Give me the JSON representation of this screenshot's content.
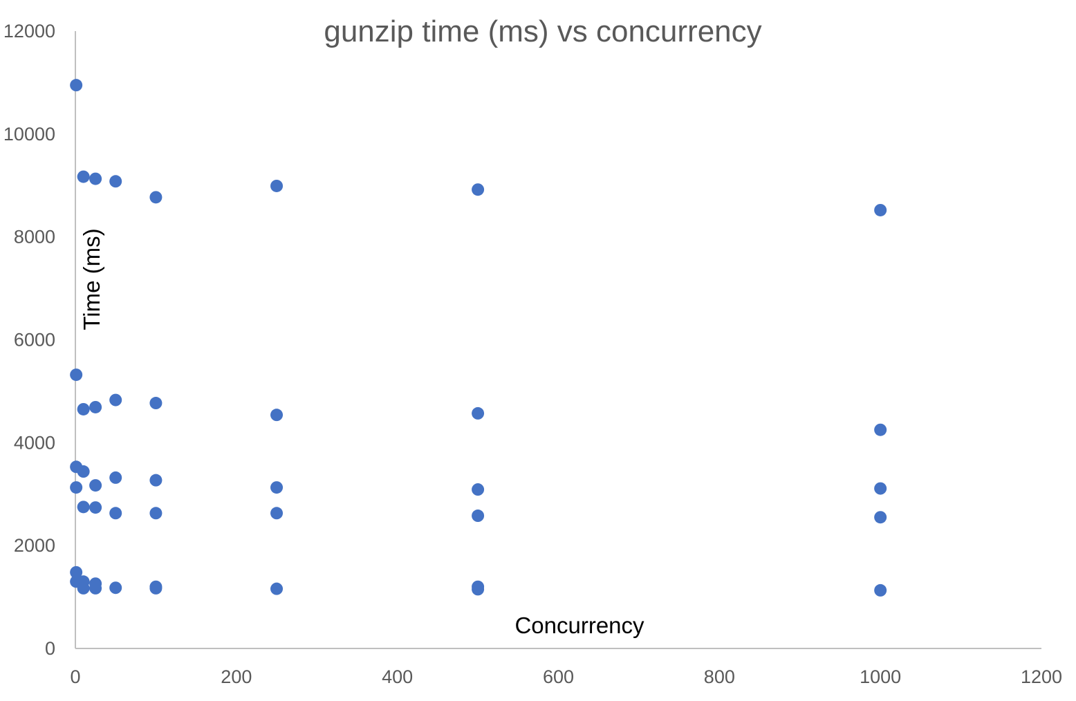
{
  "chart_data": {
    "type": "scatter",
    "title": "gunzip time (ms) vs concurrency",
    "xlabel": "Concurrency",
    "ylabel": "Time (ms)",
    "xlim": [
      0,
      1200
    ],
    "ylim": [
      0,
      12000
    ],
    "xticks": [
      "0",
      "200",
      "400",
      "600",
      "800",
      "1000",
      "1200"
    ],
    "yticks": [
      "0",
      "2000",
      "4000",
      "6000",
      "8000",
      "10000",
      "12000"
    ],
    "grid": false,
    "legend": "none",
    "marker_color": "#4472c4",
    "series": [
      {
        "points": [
          [
            1,
            10950
          ],
          [
            1,
            5320
          ],
          [
            1,
            3530
          ],
          [
            1,
            3130
          ],
          [
            1,
            1480
          ],
          [
            1,
            1300
          ],
          [
            10,
            9170
          ],
          [
            10,
            4650
          ],
          [
            10,
            3440
          ],
          [
            10,
            2750
          ],
          [
            10,
            1300
          ],
          [
            10,
            1170
          ],
          [
            25,
            9130
          ],
          [
            25,
            4690
          ],
          [
            25,
            3170
          ],
          [
            25,
            2740
          ],
          [
            25,
            1260
          ],
          [
            25,
            1170
          ],
          [
            50,
            9080
          ],
          [
            50,
            4830
          ],
          [
            50,
            3320
          ],
          [
            50,
            2630
          ],
          [
            50,
            1180
          ],
          [
            100,
            8770
          ],
          [
            100,
            4770
          ],
          [
            100,
            3270
          ],
          [
            100,
            2630
          ],
          [
            100,
            1200
          ],
          [
            100,
            1170
          ],
          [
            250,
            8990
          ],
          [
            250,
            4540
          ],
          [
            250,
            3130
          ],
          [
            250,
            2630
          ],
          [
            250,
            1160
          ],
          [
            500,
            8920
          ],
          [
            500,
            4570
          ],
          [
            500,
            3090
          ],
          [
            500,
            2580
          ],
          [
            500,
            1200
          ],
          [
            500,
            1150
          ],
          [
            1000,
            8520
          ],
          [
            1000,
            4250
          ],
          [
            1000,
            3110
          ],
          [
            1000,
            2550
          ],
          [
            1000,
            1130
          ]
        ]
      }
    ]
  }
}
